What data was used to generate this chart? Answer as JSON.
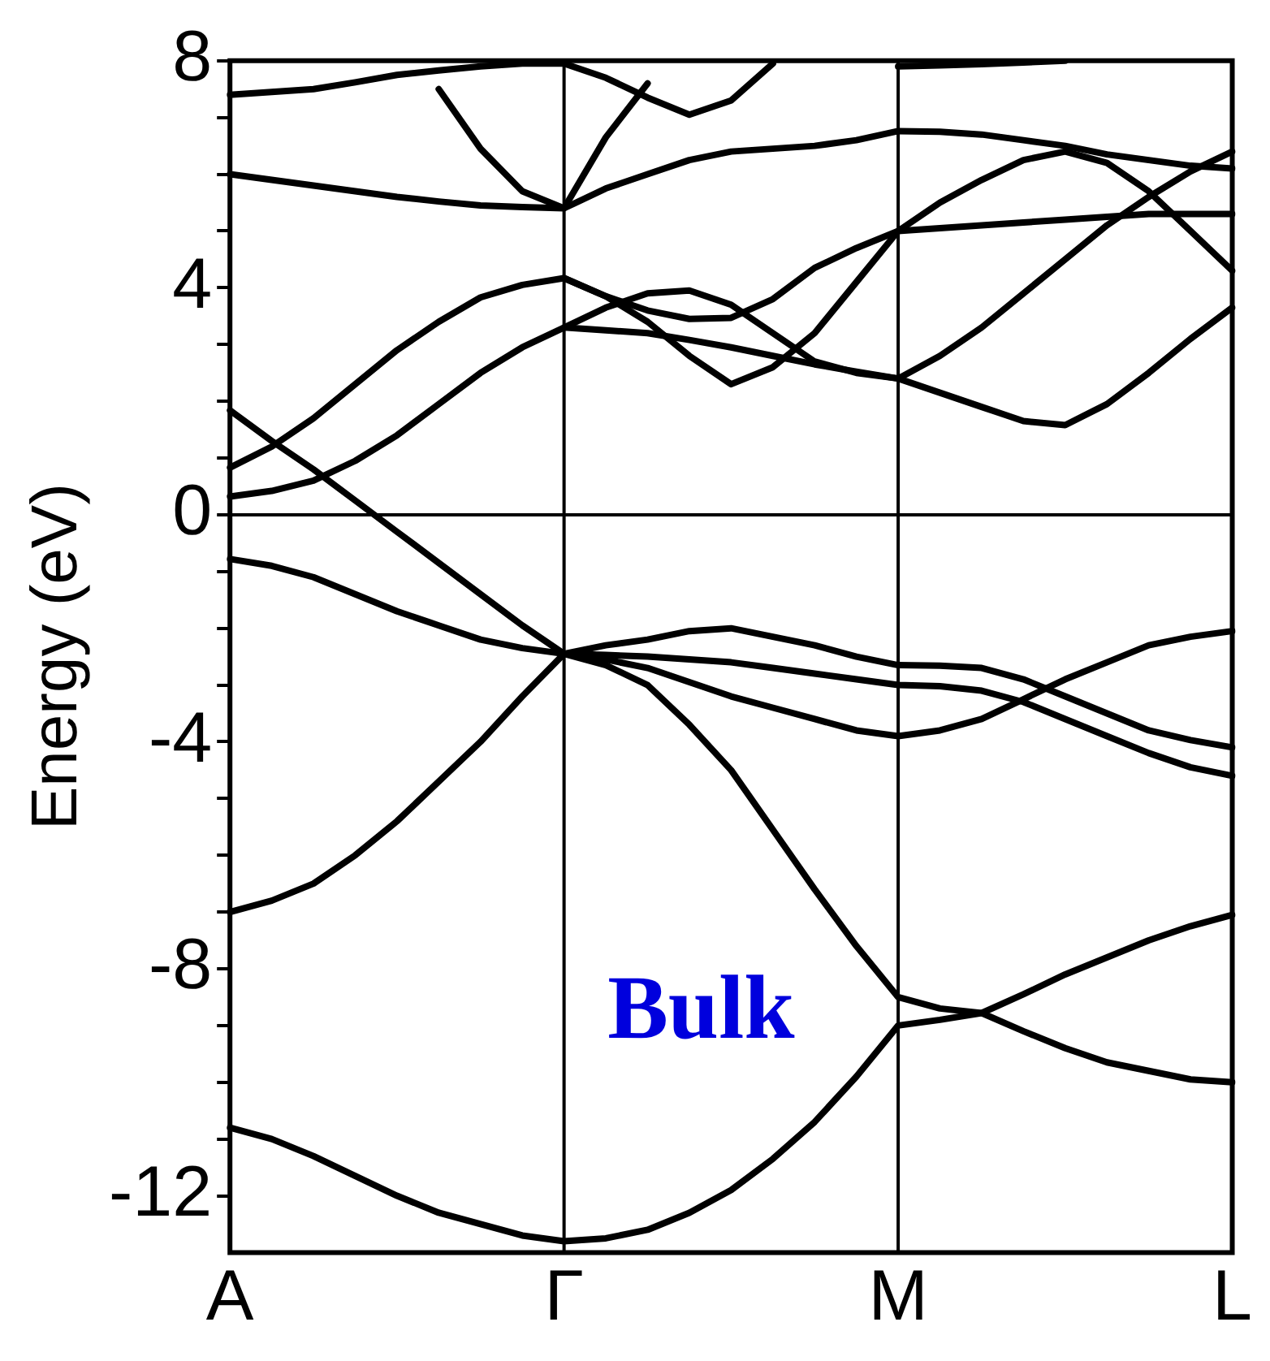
{
  "chart_data": {
    "type": "line",
    "ylabel": "Energy (eV)",
    "annotations": [
      "Bulk"
    ],
    "marker": "none",
    "line_style": "solid",
    "categories": [
      "A",
      null,
      null,
      null,
      null,
      null,
      null,
      null,
      "Γ",
      null,
      null,
      null,
      null,
      null,
      null,
      null,
      "M",
      null,
      null,
      null,
      null,
      null,
      null,
      null,
      "L"
    ],
    "ylim": [
      -13,
      8
    ],
    "yticks": [
      -12,
      {
        "value": -11,
        "label": null
      },
      {
        "value": -10,
        "label": null
      },
      {
        "value": -9,
        "label": null
      },
      -8,
      {
        "value": -7,
        "label": null
      },
      {
        "value": -6,
        "label": null
      },
      {
        "value": -5,
        "label": null
      },
      -4,
      {
        "value": -3,
        "label": null
      },
      {
        "value": -2,
        "label": null
      },
      {
        "value": -1,
        "label": null
      },
      0,
      {
        "value": 1,
        "label": null
      },
      {
        "value": 2,
        "label": null
      },
      {
        "value": 3,
        "label": null
      },
      4,
      {
        "value": 5,
        "label": null
      },
      {
        "value": 6,
        "label": null
      },
      {
        "value": 7,
        "label": null
      },
      8
    ],
    "ref_lines": [
      {
        "axis": "x",
        "value": "Γ",
        "color": "#000000"
      },
      {
        "axis": "x",
        "value": "M",
        "color": "#000000"
      },
      {
        "axis": "y",
        "value": 0,
        "color": "#000000"
      }
    ],
    "series": [
      {
        "color": "#000000",
        "values": [
          -10.8,
          -11.0,
          -11.3,
          -11.65,
          -12.0,
          -12.3,
          -12.5,
          -12.7,
          -12.8,
          -12.75,
          -12.6,
          -12.3,
          -11.9,
          -11.35,
          -10.7,
          -9.9,
          -9.0,
          -8.9,
          -8.78,
          -8.45,
          -8.1,
          -7.8,
          -7.5,
          -7.25,
          -7.05
        ]
      },
      {
        "color": "#000000",
        "values": [
          null,
          null,
          null,
          null,
          null,
          null,
          null,
          null,
          -2.45,
          -2.65,
          -3.0,
          -3.7,
          -4.5,
          -5.55,
          -6.6,
          -7.6,
          -8.5,
          -8.7,
          -8.78,
          -9.1,
          -9.4,
          -9.65,
          -9.8,
          -9.95,
          -10.0
        ]
      },
      {
        "color": "#000000",
        "values": [
          -7.0,
          -6.8,
          -6.5,
          -6.0,
          -5.4,
          -4.7,
          -4.0,
          -3.2,
          -2.45,
          -2.47,
          -2.5,
          -2.55,
          -2.6,
          -2.7,
          -2.8,
          -2.9,
          -3.0,
          -3.02,
          -3.1,
          -3.3,
          -3.6,
          -3.9,
          -4.2,
          -4.45,
          -4.6
        ]
      },
      {
        "color": "#000000",
        "values": [
          -0.78,
          -0.9,
          -1.1,
          -1.4,
          -1.7,
          -1.95,
          -2.2,
          -2.35,
          -2.45,
          -2.55,
          -2.7,
          -2.95,
          -3.2,
          -3.4,
          -3.6,
          -3.8,
          -3.9,
          -3.8,
          -3.6,
          -3.25,
          -2.9,
          -2.6,
          -2.3,
          -2.15,
          -2.05
        ]
      },
      {
        "color": "#000000",
        "values": [
          1.84,
          1.3,
          0.8,
          0.25,
          -0.3,
          -0.85,
          -1.4,
          -1.95,
          -2.45,
          -2.3,
          -2.2,
          -2.05,
          -2.0,
          -2.15,
          -2.3,
          -2.5,
          -2.65,
          -2.66,
          -2.7,
          -2.9,
          -3.2,
          -3.5,
          -3.8,
          -3.97,
          -4.1
        ]
      },
      {
        "color": "#000000",
        "values": [
          0.32,
          0.42,
          0.6,
          0.95,
          1.4,
          1.95,
          2.5,
          2.95,
          3.3,
          3.25,
          3.2,
          3.08,
          2.95,
          2.8,
          2.65,
          2.52,
          2.4,
          2.15,
          1.9,
          1.65,
          1.58,
          1.95,
          2.5,
          3.1,
          3.65
        ]
      },
      {
        "color": "#000000",
        "values": [
          0.83,
          1.2,
          1.7,
          2.3,
          2.9,
          3.4,
          3.83,
          4.05,
          4.17,
          3.85,
          3.4,
          2.8,
          2.3,
          2.6,
          3.2,
          4.1,
          5.0,
          5.5,
          5.9,
          6.25,
          6.4,
          6.2,
          5.7,
          5.0,
          4.3
        ]
      },
      {
        "color": "#000000",
        "values": [
          null,
          null,
          null,
          null,
          null,
          null,
          null,
          null,
          4.17,
          3.85,
          3.6,
          3.45,
          3.47,
          3.8,
          4.35,
          4.7,
          5.0,
          5.05,
          5.1,
          5.15,
          5.2,
          5.25,
          5.3,
          5.3,
          5.3
        ]
      },
      {
        "color": "#000000",
        "values": [
          null,
          null,
          null,
          null,
          null,
          null,
          null,
          null,
          3.3,
          3.65,
          3.9,
          3.95,
          3.7,
          3.2,
          2.7,
          2.5,
          2.4,
          2.8,
          3.3,
          3.9,
          4.5,
          5.1,
          5.6,
          6.05,
          6.4
        ]
      },
      {
        "color": "#000000",
        "values": [
          6.0,
          5.9,
          5.8,
          5.7,
          5.6,
          5.52,
          5.45,
          5.42,
          5.4,
          5.75,
          6.0,
          6.25,
          6.4,
          6.45,
          6.5,
          6.6,
          6.76,
          6.75,
          6.7,
          6.6,
          6.5,
          6.35,
          6.25,
          6.15,
          6.1
        ]
      },
      {
        "color": "#000000",
        "values": [
          7.4,
          7.45,
          7.5,
          7.62,
          7.75,
          7.83,
          7.9,
          7.95,
          7.95,
          7.7,
          7.35,
          7.05,
          7.3,
          7.95,
          null,
          null,
          null,
          null,
          null,
          null,
          null,
          null,
          null,
          null,
          null
        ]
      },
      {
        "color": "#000000",
        "values": [
          null,
          null,
          null,
          null,
          null,
          7.5,
          6.45,
          5.7,
          5.4,
          6.65,
          7.6,
          null,
          null,
          null,
          null,
          null,
          null,
          null,
          null,
          null,
          null,
          null,
          null,
          null,
          null
        ]
      },
      {
        "color": "#000000",
        "values": [
          null,
          null,
          null,
          null,
          null,
          null,
          null,
          null,
          null,
          null,
          null,
          null,
          null,
          null,
          null,
          null,
          7.9,
          7.92,
          7.94,
          7.97,
          8.0,
          null,
          null,
          null,
          null
        ]
      }
    ]
  }
}
